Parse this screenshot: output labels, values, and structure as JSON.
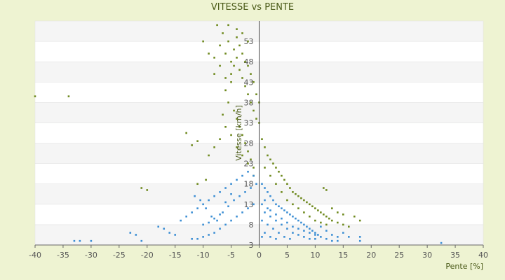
{
  "chart_data": {
    "type": "scatter",
    "title": "VITESSE vs PENTE",
    "xlabel": "Pente [%]",
    "ylabel": "Vitesse [km/h]",
    "xlim": [
      -40,
      40
    ],
    "ylim": [
      3,
      58
    ],
    "x_ticks": [
      -40,
      -35,
      -30,
      -25,
      -20,
      -15,
      -10,
      -5,
      0,
      5,
      10,
      15,
      20,
      25,
      30,
      35,
      40
    ],
    "y_ticks": [
      3,
      8,
      13,
      18,
      23,
      28,
      33,
      38,
      43,
      48,
      53
    ],
    "grid": "horizontal-bands",
    "series": [
      {
        "color": "#6f8a1f",
        "points": [
          [
            -40,
            39.5
          ],
          [
            -34,
            39.5
          ],
          [
            -13,
            30.5
          ],
          [
            -12,
            27.5
          ],
          [
            -11,
            28.5
          ],
          [
            -10,
            53
          ],
          [
            -9,
            50
          ],
          [
            -8,
            49
          ],
          [
            -8,
            45
          ],
          [
            -7.5,
            57
          ],
          [
            -7,
            52
          ],
          [
            -7,
            47
          ],
          [
            -6.5,
            55
          ],
          [
            -6,
            50
          ],
          [
            -6,
            44
          ],
          [
            -6,
            41
          ],
          [
            -5.5,
            57
          ],
          [
            -5.5,
            53
          ],
          [
            -5,
            48
          ],
          [
            -5,
            45
          ],
          [
            -5,
            43
          ],
          [
            -4.5,
            51
          ],
          [
            -4.5,
            47
          ],
          [
            -4,
            56
          ],
          [
            -4,
            54
          ],
          [
            -4,
            49
          ],
          [
            -3.5,
            52
          ],
          [
            -3.5,
            46
          ],
          [
            -3,
            55
          ],
          [
            -3,
            50
          ],
          [
            -3,
            44
          ],
          [
            -2.5,
            48
          ],
          [
            -2.5,
            42
          ],
          [
            -2,
            53
          ],
          [
            -2,
            47
          ],
          [
            -2,
            40
          ],
          [
            -1.5,
            45
          ],
          [
            -1.5,
            38
          ],
          [
            -1,
            43
          ],
          [
            -1,
            36
          ],
          [
            -0.5,
            40
          ],
          [
            -0.5,
            34
          ],
          [
            0,
            38
          ],
          [
            0,
            33
          ],
          [
            -5.5,
            38
          ],
          [
            -4.5,
            36
          ],
          [
            -4,
            34
          ],
          [
            -3.5,
            32
          ],
          [
            -3,
            30
          ],
          [
            -2.5,
            28
          ],
          [
            -2,
            26
          ],
          [
            -1.5,
            24
          ],
          [
            -1,
            22
          ],
          [
            -6,
            32
          ],
          [
            -7,
            29
          ],
          [
            -8,
            27
          ],
          [
            -9,
            25
          ],
          [
            -6.5,
            35
          ],
          [
            -5,
            30
          ],
          [
            -4,
            27
          ],
          [
            -3,
            25
          ],
          [
            -2,
            23
          ],
          [
            -1,
            20
          ],
          [
            0.5,
            29
          ],
          [
            1,
            27
          ],
          [
            1.5,
            25
          ],
          [
            2,
            24
          ],
          [
            2.5,
            23
          ],
          [
            3,
            22
          ],
          [
            3.5,
            21
          ],
          [
            4,
            20
          ],
          [
            4.5,
            19
          ],
          [
            5,
            18
          ],
          [
            5.5,
            17
          ],
          [
            6,
            16
          ],
          [
            6.5,
            15.5
          ],
          [
            7,
            15
          ],
          [
            7.5,
            14.5
          ],
          [
            8,
            14
          ],
          [
            8.5,
            13.5
          ],
          [
            9,
            13
          ],
          [
            9.5,
            12.5
          ],
          [
            10,
            12
          ],
          [
            10.5,
            11.5
          ],
          [
            11,
            11
          ],
          [
            11.5,
            10.5
          ],
          [
            12,
            10
          ],
          [
            12.5,
            9.5
          ],
          [
            13,
            9
          ],
          [
            14,
            8.5
          ],
          [
            15,
            8
          ],
          [
            16,
            7.5
          ],
          [
            17,
            10
          ],
          [
            18,
            9
          ],
          [
            1,
            22
          ],
          [
            2,
            20
          ],
          [
            3,
            18
          ],
          [
            4,
            16
          ],
          [
            5,
            14
          ],
          [
            6,
            13
          ],
          [
            7,
            12
          ],
          [
            8,
            11
          ],
          [
            9,
            10
          ],
          [
            10,
            9
          ],
          [
            11,
            8.5
          ],
          [
            12,
            8
          ],
          [
            13,
            12
          ],
          [
            14,
            11
          ],
          [
            15,
            10.5
          ],
          [
            11.5,
            17
          ],
          [
            12,
            16.5
          ],
          [
            -21,
            17
          ],
          [
            -20,
            16.5
          ],
          [
            -11,
            18
          ],
          [
            -9.5,
            19
          ]
        ]
      },
      {
        "color": "#3d8fd4",
        "points": [
          [
            -33,
            4
          ],
          [
            -32,
            4
          ],
          [
            -30,
            4
          ],
          [
            -23,
            6
          ],
          [
            -22,
            5.5
          ],
          [
            -21,
            4
          ],
          [
            -18,
            7.5
          ],
          [
            -17,
            7
          ],
          [
            -16,
            6
          ],
          [
            -15,
            5.5
          ],
          [
            -14,
            9
          ],
          [
            -13,
            10
          ],
          [
            -12,
            11
          ],
          [
            -11,
            12
          ],
          [
            -10,
            13
          ],
          [
            -9,
            14
          ],
          [
            -8,
            15
          ],
          [
            -7,
            16
          ],
          [
            -6,
            17
          ],
          [
            -5,
            18
          ],
          [
            -4,
            19
          ],
          [
            -3,
            20
          ],
          [
            -2,
            21
          ],
          [
            -1,
            20
          ],
          [
            -12,
            4.5
          ],
          [
            -11,
            4.5
          ],
          [
            -10,
            5
          ],
          [
            -9,
            5.5
          ],
          [
            -8,
            6
          ],
          [
            -7,
            7
          ],
          [
            -6,
            8
          ],
          [
            -5,
            9
          ],
          [
            -4,
            10
          ],
          [
            -3,
            11
          ],
          [
            -2,
            12
          ],
          [
            -1,
            13
          ],
          [
            -11.5,
            15
          ],
          [
            -10.5,
            14
          ],
          [
            -9.5,
            12
          ],
          [
            -8.5,
            10
          ],
          [
            -7.5,
            9
          ],
          [
            -6.5,
            11
          ],
          [
            -5.5,
            12.5
          ],
          [
            -4.5,
            14
          ],
          [
            -3.5,
            15
          ],
          [
            -2.5,
            16
          ],
          [
            -1.5,
            17
          ],
          [
            -0.5,
            18
          ],
          [
            -10,
            8
          ],
          [
            -9,
            8.5
          ],
          [
            -8,
            9.5
          ],
          [
            -7,
            10.5
          ],
          [
            -6,
            13.5
          ],
          [
            -5,
            15.5
          ],
          [
            0.5,
            18
          ],
          [
            1,
            17
          ],
          [
            1.5,
            16
          ],
          [
            2,
            15
          ],
          [
            2.5,
            14
          ],
          [
            3,
            13
          ],
          [
            3.5,
            12.5
          ],
          [
            4,
            12
          ],
          [
            4.5,
            11.5
          ],
          [
            5,
            11
          ],
          [
            5.5,
            10.5
          ],
          [
            6,
            10
          ],
          [
            6.5,
            9.5
          ],
          [
            7,
            9
          ],
          [
            7.5,
            8.5
          ],
          [
            8,
            8
          ],
          [
            8.5,
            7.5
          ],
          [
            9,
            7
          ],
          [
            9.5,
            6.5
          ],
          [
            10,
            6
          ],
          [
            10.5,
            5.5
          ],
          [
            11,
            5
          ],
          [
            12,
            4.5
          ],
          [
            13,
            4
          ],
          [
            14,
            4
          ],
          [
            1,
            11
          ],
          [
            2,
            10
          ],
          [
            3,
            9
          ],
          [
            4,
            8
          ],
          [
            5,
            7
          ],
          [
            6,
            6
          ],
          [
            7,
            5.5
          ],
          [
            8,
            5
          ],
          [
            9,
            4.5
          ],
          [
            10,
            4.5
          ],
          [
            1.5,
            8
          ],
          [
            2.5,
            7
          ],
          [
            3.5,
            6
          ],
          [
            4.5,
            5
          ],
          [
            5.5,
            4.5
          ],
          [
            1,
            6
          ],
          [
            2,
            5
          ],
          [
            3,
            4.5
          ],
          [
            0.5,
            13
          ],
          [
            0.5,
            9
          ],
          [
            0.5,
            5
          ],
          [
            1,
            14
          ],
          [
            1.5,
            12
          ],
          [
            2,
            11.5
          ],
          [
            3,
            10.5
          ],
          [
            4,
            9.5
          ],
          [
            5,
            8.5
          ],
          [
            6,
            7.5
          ],
          [
            7,
            7
          ],
          [
            8,
            6.5
          ],
          [
            9,
            6
          ],
          [
            10,
            5.5
          ],
          [
            11,
            7.5
          ],
          [
            12,
            6.5
          ],
          [
            13,
            5.5
          ],
          [
            14,
            5
          ],
          [
            15,
            6
          ],
          [
            16,
            5
          ],
          [
            18,
            4
          ],
          [
            18,
            5
          ],
          [
            32.5,
            3.5
          ]
        ]
      }
    ]
  }
}
